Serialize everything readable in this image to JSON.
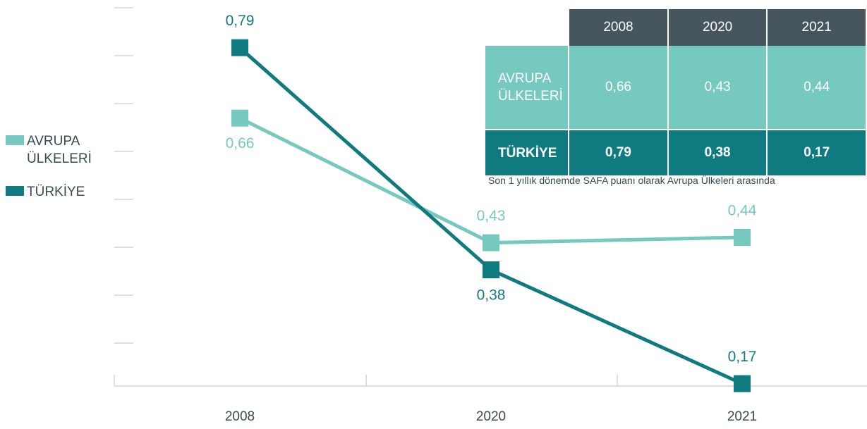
{
  "chart_data": {
    "type": "line",
    "categories": [
      "2008",
      "2020",
      "2021"
    ],
    "series": [
      {
        "name": "AVRUPA ÜLKELERİ",
        "color": "#76c9bf",
        "values": [
          0.66,
          0.43,
          0.44
        ],
        "value_labels": [
          "0,66",
          "0,43",
          "0,44"
        ]
      },
      {
        "name": "TÜRKİYE",
        "color": "#0f7b80",
        "values": [
          0.79,
          0.38,
          0.17
        ],
        "value_labels": [
          "0,79",
          "0,38",
          "0,17"
        ]
      }
    ],
    "ylim": [
      0.15,
      0.8
    ],
    "note": "Son 1 yıllık dönemde SAFA puanı olarak Avrupa Ülkeleri arasında"
  }
}
